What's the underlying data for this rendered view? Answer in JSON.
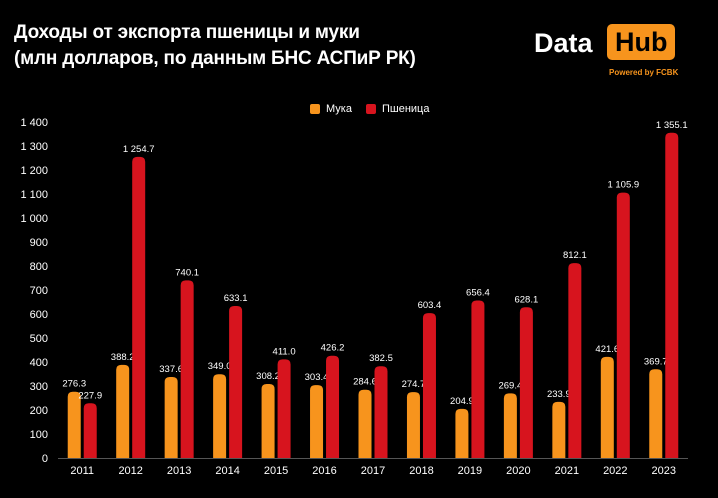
{
  "header": {
    "title_line1": "Доходы от экспорта пшеницы и муки",
    "title_line2": "(млн долларов, по данным БНС АСПиР РК)"
  },
  "logo": {
    "data_text": "Data",
    "hub_text": "Hub",
    "powered_text": "Powered by FCBK"
  },
  "colors": {
    "muka": "#f7941d",
    "pshenitsa": "#d7141e",
    "background": "#000000"
  },
  "chart_data": {
    "type": "bar",
    "title": "Доходы от экспорта пшеницы и муки (млн долларов, по данным БНС АСПиР РК)",
    "categories": [
      "2011",
      "2012",
      "2013",
      "2014",
      "2015",
      "2016",
      "2017",
      "2018",
      "2019",
      "2020",
      "2021",
      "2022",
      "2023"
    ],
    "series": [
      {
        "name": "Мука",
        "values": [
          276.3,
          388.2,
          337.6,
          349.0,
          308.2,
          303.4,
          284.6,
          274.7,
          204.9,
          269.4,
          233.9,
          421.6,
          369.7
        ],
        "labels": [
          "276.3",
          "388.2",
          "337.6",
          "349.0",
          "308.2",
          "303.4",
          "284.6",
          "274.7",
          "204.9",
          "269.4",
          "233.9",
          "421.6",
          "369.7"
        ]
      },
      {
        "name": "Пшеница",
        "values": [
          227.9,
          1254.7,
          740.1,
          633.1,
          411.0,
          426.2,
          382.5,
          603.4,
          656.4,
          628.1,
          812.1,
          1105.9,
          1355.1
        ],
        "labels": [
          "227.9",
          "1 254.7",
          "740.1",
          "633.1",
          "411.0",
          "426.2",
          "382.5",
          "603.4",
          "656.4",
          "628.1",
          "812.1",
          "1 105.9",
          "1 355.1"
        ]
      }
    ],
    "ylim": [
      0,
      1400
    ],
    "yticks": [
      "0",
      "100",
      "200",
      "300",
      "400",
      "500",
      "600",
      "700",
      "800",
      "900",
      "1 000",
      "1 100",
      "1 200",
      "1 300",
      "1 400"
    ],
    "xlabel": "",
    "ylabel": "",
    "grid": false,
    "legend_position": "top-center"
  }
}
